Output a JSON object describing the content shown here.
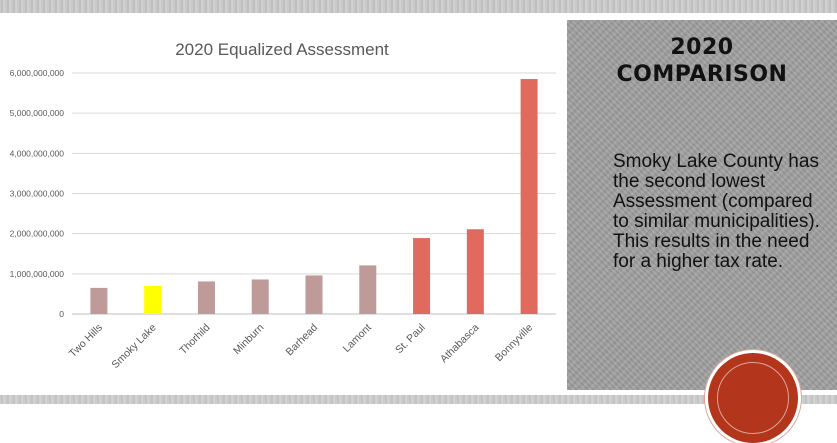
{
  "slide": {
    "heading_line1": "2020",
    "heading_line2": "COMPARISON",
    "body_text": "Smoky Lake County has the second lowest Assessment (compared to similar municipalities).  This results in the need for a higher tax rate."
  },
  "colors": {
    "neutral_bar": "#be9a99",
    "highlight_bar": "#ffff00",
    "larger_bar": "#e06a5e",
    "panel": "#9f9f9f",
    "badge": "#b2351c"
  },
  "chart_data": {
    "type": "bar",
    "title": "2020 Equalized Assessment",
    "xlabel": "",
    "ylabel": "",
    "categories": [
      "Two Hills",
      "Smoky Lake",
      "Thorhild",
      "Minburn",
      "Barhead",
      "Lamont",
      "St. Paul",
      "Athabasca",
      "Bonnyville"
    ],
    "values": [
      650000000,
      700000000,
      810000000,
      860000000,
      960000000,
      1210000000,
      1890000000,
      2110000000,
      5850000000
    ],
    "bar_colors": [
      "#be9a99",
      "#ffff00",
      "#be9a99",
      "#be9a99",
      "#be9a99",
      "#be9a99",
      "#e06a5e",
      "#e06a5e",
      "#e06a5e"
    ],
    "ylim": [
      0,
      6000000000
    ],
    "yticks": [
      0,
      1000000000,
      2000000000,
      3000000000,
      4000000000,
      5000000000,
      6000000000
    ],
    "ytick_labels": [
      "0",
      "1,000,000,000",
      "2,000,000,000",
      "3,000,000,000",
      "4,000,000,000",
      "5,000,000,000",
      "6,000,000,000"
    ],
    "grid": true,
    "legend": "none"
  }
}
